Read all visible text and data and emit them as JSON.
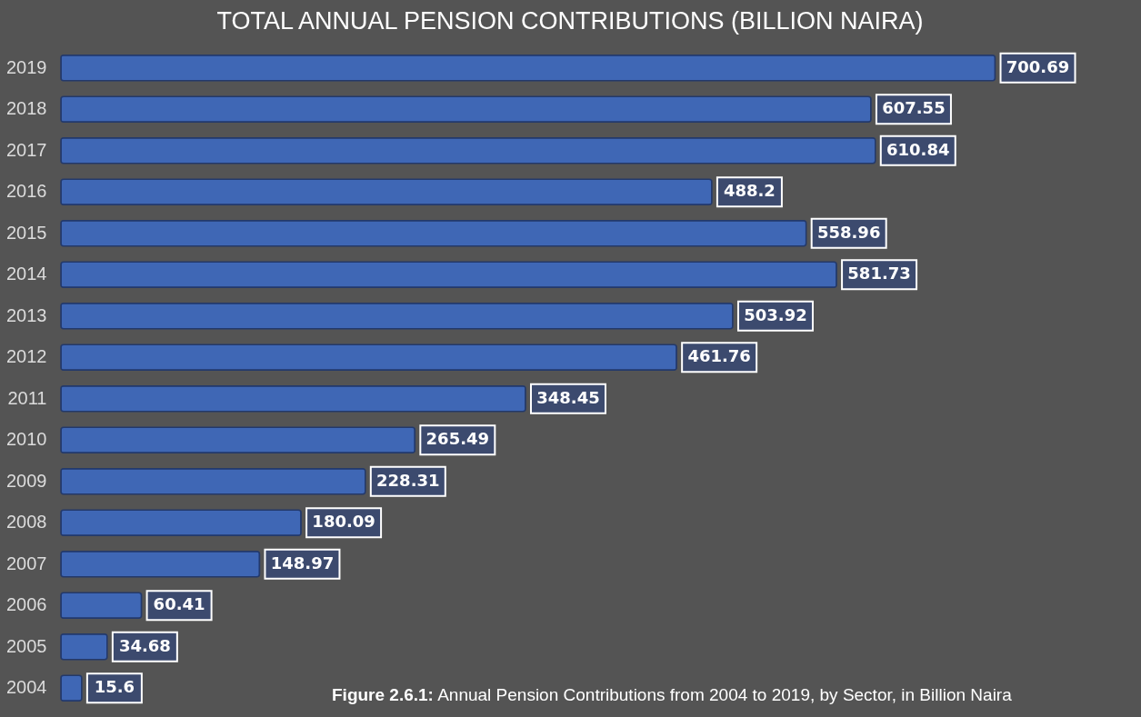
{
  "chart_data": {
    "type": "bar",
    "orientation": "horizontal",
    "title": "TOTAL ANNUAL PENSION CONTRIBUTIONS (BILLION NAIRA)",
    "categories": [
      "2019",
      "2018",
      "2017",
      "2016",
      "2015",
      "2014",
      "2013",
      "2012",
      "2011",
      "2010",
      "2009",
      "2008",
      "2007",
      "2006",
      "2005",
      "2004"
    ],
    "values": [
      700.69,
      607.55,
      610.84,
      488.2,
      558.96,
      581.73,
      503.92,
      461.76,
      348.45,
      265.49,
      228.31,
      180.09,
      148.97,
      60.41,
      34.68,
      15.6
    ],
    "color": "#3f67b5",
    "data_labels": true,
    "annotations": [
      "Figure 2.6.1: Annual Pension Contributions from 2004 to 2019, by Sector, in Billion Naira"
    ]
  }
}
